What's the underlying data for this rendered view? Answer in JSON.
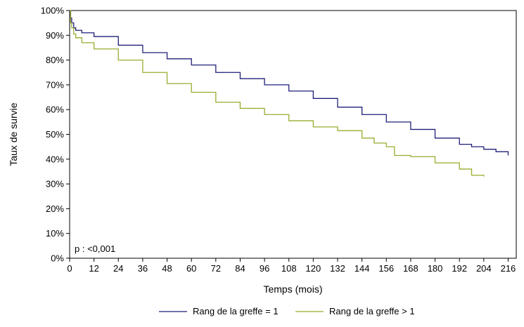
{
  "chart_data": {
    "type": "line",
    "title": "",
    "xlabel": "Temps (mois)",
    "ylabel": "Taux de survie",
    "xlim": [
      0,
      220
    ],
    "ylim": [
      0,
      100
    ],
    "x_ticks": [
      0,
      12,
      24,
      36,
      48,
      60,
      72,
      84,
      96,
      108,
      120,
      132,
      144,
      156,
      168,
      180,
      192,
      204,
      216
    ],
    "y_ticks": [
      0,
      10,
      20,
      30,
      40,
      50,
      60,
      70,
      80,
      90,
      100
    ],
    "y_tick_suffix": "%",
    "grid": false,
    "legend_position": "bottom",
    "annotation": "p : <0,001",
    "series": [
      {
        "name": "Rang de la greffe = 1",
        "color": "#1f1f7a",
        "x": [
          0,
          0.5,
          1,
          2,
          3,
          6,
          12,
          24,
          36,
          48,
          60,
          72,
          84,
          96,
          108,
          120,
          132,
          144,
          156,
          168,
          180,
          192,
          198,
          204,
          210,
          216
        ],
        "y": [
          100,
          97,
          95,
          93,
          92,
          91,
          89.5,
          86,
          83,
          80.5,
          78,
          75,
          72.5,
          70,
          67.5,
          64.5,
          61,
          58,
          55,
          52,
          48.5,
          46,
          45,
          44,
          43,
          41.5
        ]
      },
      {
        "name": "Rang de la greffe > 1",
        "color": "#9aab2e",
        "x": [
          0,
          0.5,
          1,
          2,
          3,
          6,
          12,
          24,
          36,
          48,
          60,
          72,
          84,
          96,
          108,
          120,
          132,
          144,
          150,
          156,
          160,
          168,
          180,
          192,
          198,
          204
        ],
        "y": [
          100,
          95,
          93,
          90.5,
          89,
          87,
          84.5,
          80,
          75,
          70.5,
          67,
          63,
          60.5,
          58,
          55.5,
          53,
          51.5,
          48.5,
          46.5,
          45,
          41.5,
          41,
          38.5,
          36,
          33.5,
          33
        ]
      }
    ]
  }
}
